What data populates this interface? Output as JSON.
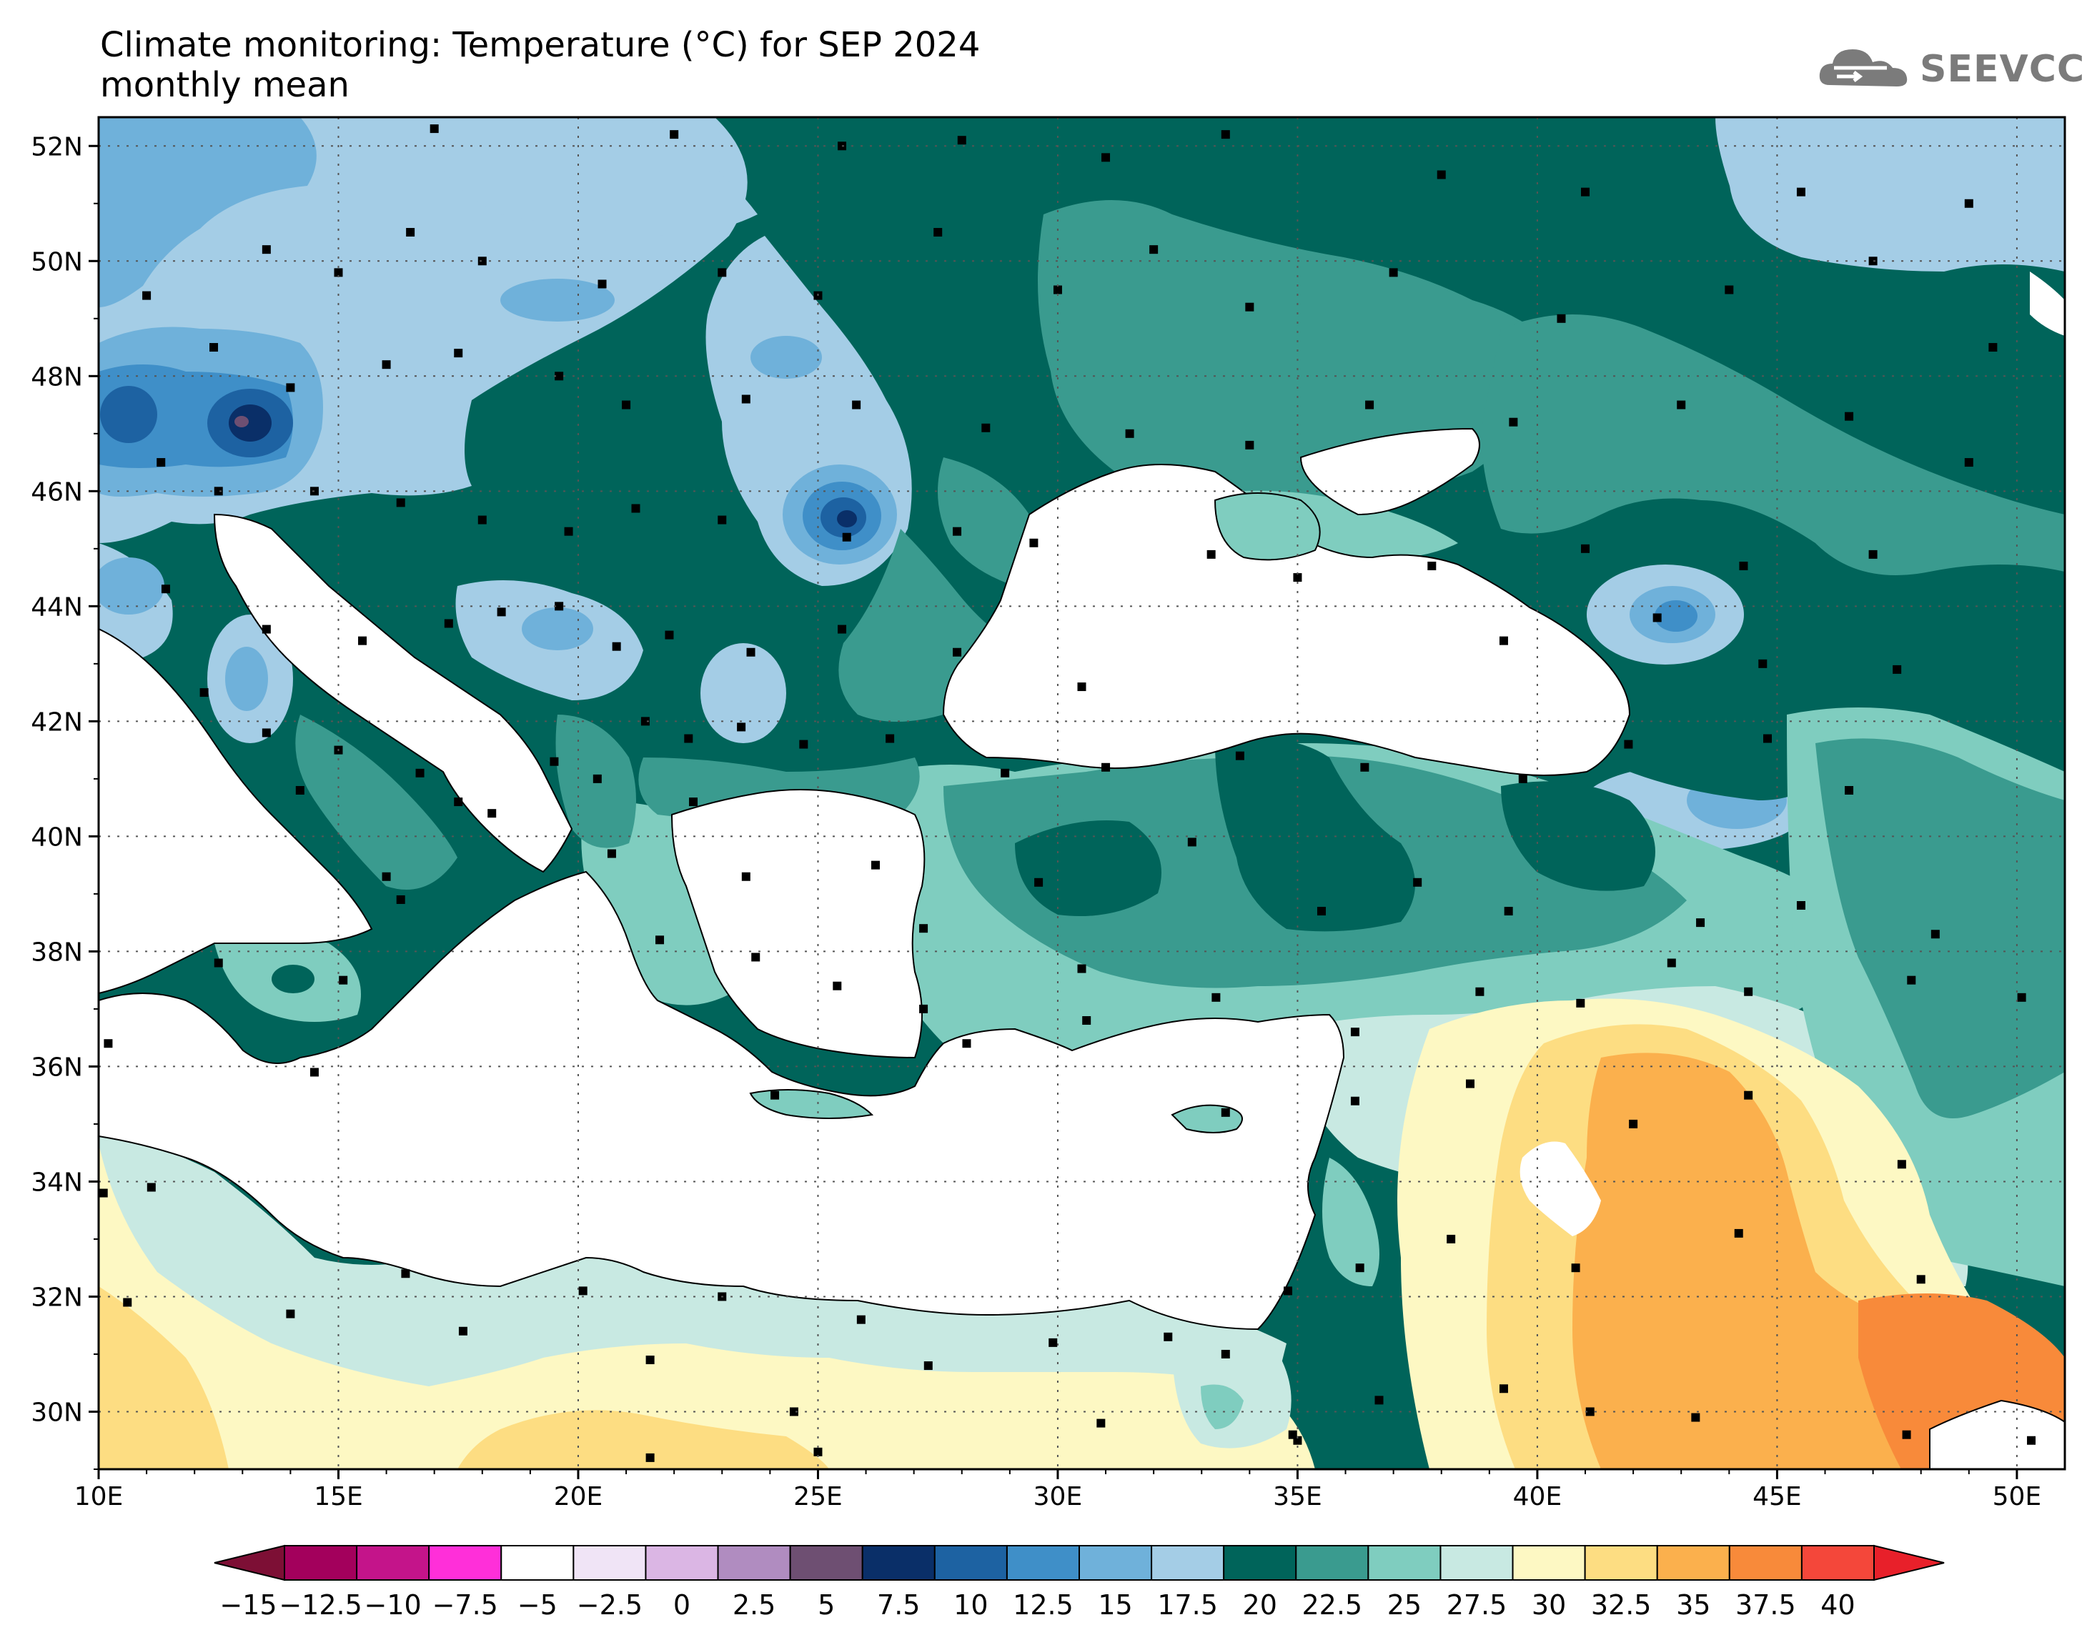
{
  "title": {
    "line1": "Climate monitoring: Temperature (°C) for SEP 2024",
    "line2": "monthly mean"
  },
  "logo": {
    "text": "SEEVCCC",
    "icon": "cloud-logo-icon"
  },
  "map": {
    "lon_range": [
      10,
      51
    ],
    "lat_range": [
      29,
      52.5
    ],
    "lon_ticks": [
      "10E",
      "15E",
      "20E",
      "25E",
      "30E",
      "35E",
      "40E",
      "45E",
      "50E"
    ],
    "lat_ticks": [
      "30N",
      "32N",
      "34N",
      "36N",
      "38N",
      "40N",
      "42N",
      "44N",
      "46N",
      "48N",
      "50N",
      "52N"
    ],
    "gridlines": true,
    "station_markers": true
  },
  "colorbar": {
    "labels": [
      "−15",
      "−12.5",
      "−10",
      "−7.5",
      "−5",
      "−2.5",
      "0",
      "2.5",
      "5",
      "7.5",
      "10",
      "12.5",
      "15",
      "17.5",
      "20",
      "22.5",
      "25",
      "27.5",
      "30",
      "32.5",
      "35",
      "37.5",
      "40"
    ],
    "colors": [
      "#a3005c",
      "#c4148a",
      "#ff2fd9",
      "#ffffff",
      "#f0e4f6",
      "#dbb6e4",
      "#b08cc0",
      "#6e4f72",
      "#0a2f68",
      "#1d62a2",
      "#3f8fc8",
      "#6fb1da",
      "#a4cde6",
      "#00645a",
      "#3a9b8f",
      "#7fcdbf",
      "#c8e9e2",
      "#fdf8c3",
      "#fddd82",
      "#fbb04d",
      "#f88a3a",
      "#f4473a"
    ],
    "left_arrow_color": "#7d0f35",
    "right_arrow_color": "#e8202a"
  },
  "regions": {
    "sea_color": "#ffffff",
    "colors_by_class": {
      "c15": "#a4cde6",
      "c12": "#6fb1da",
      "c10": "#3f8fc8",
      "c7": "#1d62a2",
      "c5": "#0a2f68",
      "c17": "#00645a",
      "c20": "#3a9b8f",
      "c22": "#7fcdbf",
      "c25": "#c8e9e2",
      "c27": "#fdf8c3",
      "c30": "#fddd82",
      "c32": "#fbb04d",
      "c35": "#f88a3a"
    }
  }
}
